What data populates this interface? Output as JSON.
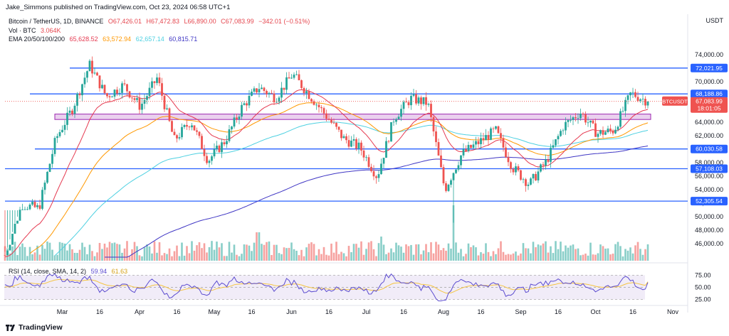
{
  "header": {
    "published": "Jake_Simmons published on TradingView.com, Oct 23, 2024 06:58 UTC+1"
  },
  "legend": {
    "symbol": "Bitcoin / TetherUS, 1D, BINANCE",
    "open": "O67,426.01",
    "high": "H67,472.83",
    "low": "L66,890.00",
    "close": "C67,083.99",
    "change": "−342.01 (−0.51%)",
    "vol_label": "Vol · BTC",
    "vol_value": "3.064K",
    "ema_label": "EMA 20/50/100/200",
    "ema20": "65,628.52",
    "ema50": "63,572.94",
    "ema100": "62,657.14",
    "ema200": "60,815.71"
  },
  "rsi_legend": {
    "label": "RSI (14, close, SMA, 14, 2)",
    "rsi": "59.94",
    "sma": "61.63"
  },
  "axis": {
    "unit": "USDT"
  },
  "brand": {
    "name": "TradingView"
  },
  "colors": {
    "up": "#26a69a",
    "down": "#ef5350",
    "level": "#2962ff",
    "ema20": "#e53950",
    "ema50": "#ff9800",
    "ema100": "#4dd0e1",
    "ema200": "#3f36c4",
    "zone_fill": "#e1bee7",
    "zone_border": "#9c27b0",
    "rsi_line": "#5b4bcf",
    "rsi_sma": "#f5c542",
    "rsi_band": "#ede7f6"
  },
  "chart_data": {
    "type": "candlestick",
    "title": "Bitcoin / TetherUS, 1D, BINANCE",
    "ylabel": "USDT",
    "ylim": [
      44000,
      76000
    ],
    "y_ticks": [
      46000,
      48000,
      50000,
      52000,
      54000,
      56000,
      58000,
      60000,
      62000,
      64000,
      66000,
      68000,
      70000,
      72000,
      74000
    ],
    "x_ticks": [
      "Mar",
      "16",
      "Apr",
      "16",
      "May",
      "16",
      "Jun",
      "16",
      "Jul",
      "16",
      "Aug",
      "16",
      "Sep",
      "16",
      "Oct",
      "16",
      "Nov"
    ],
    "x_tick_days": [
      0,
      15,
      31,
      46,
      61,
      76,
      92,
      107,
      122,
      137,
      153,
      168,
      184,
      199,
      214,
      229,
      245
    ],
    "date_range": [
      "2024-02-07",
      "2024-10-23"
    ],
    "horizontal_levels": [
      {
        "price": 72021.95,
        "label": "72,021.95"
      },
      {
        "price": 68188.86,
        "label": "68,188.86"
      },
      {
        "price": 60030.58,
        "label": "60,030.58"
      },
      {
        "price": 57108.03,
        "label": "57,108.03"
      },
      {
        "price": 52305.54,
        "label": "52,305.54"
      }
    ],
    "current_price": {
      "price": 67083.99,
      "label": "67,083.99",
      "symbol": "BTCUSDT",
      "countdown": "18:01:05"
    },
    "zone": {
      "low": 64400,
      "high": 65200
    },
    "closes_weekly": [
      {
        "date": "Feb 07",
        "close": 44300
      },
      {
        "date": "Feb 14",
        "close": 51800
      },
      {
        "date": "Feb 21",
        "close": 51200
      },
      {
        "date": "Feb 28",
        "close": 61500
      },
      {
        "date": "Mar 06",
        "close": 66100
      },
      {
        "date": "Mar 13",
        "close": 72500
      },
      {
        "date": "Mar 20",
        "close": 67800
      },
      {
        "date": "Mar 27",
        "close": 69500
      },
      {
        "date": "Apr 03",
        "close": 66300
      },
      {
        "date": "Apr 10",
        "close": 70600
      },
      {
        "date": "Apr 17",
        "close": 61300
      },
      {
        "date": "Apr 24",
        "close": 64200
      },
      {
        "date": "May 01",
        "close": 58300
      },
      {
        "date": "May 08",
        "close": 61200
      },
      {
        "date": "May 15",
        "close": 66200
      },
      {
        "date": "May 22",
        "close": 69200
      },
      {
        "date": "May 29",
        "close": 67600
      },
      {
        "date": "Jun 05",
        "close": 71100
      },
      {
        "date": "Jun 12",
        "close": 68000
      },
      {
        "date": "Jun 19",
        "close": 64900
      },
      {
        "date": "Jun 26",
        "close": 61600
      },
      {
        "date": "Jul 03",
        "close": 60200
      },
      {
        "date": "Jul 08",
        "close": 55900
      },
      {
        "date": "Jul 15",
        "close": 64700
      },
      {
        "date": "Jul 22",
        "close": 67500
      },
      {
        "date": "Jul 29",
        "close": 66800
      },
      {
        "date": "Aug 05",
        "close": 54000
      },
      {
        "date": "Aug 12",
        "close": 59300
      },
      {
        "date": "Aug 19",
        "close": 61000
      },
      {
        "date": "Aug 26",
        "close": 62800
      },
      {
        "date": "Sep 02",
        "close": 57300
      },
      {
        "date": "Sep 09",
        "close": 54800
      },
      {
        "date": "Sep 16",
        "close": 58200
      },
      {
        "date": "Sep 23",
        "close": 63400
      },
      {
        "date": "Sep 30",
        "close": 65500
      },
      {
        "date": "Oct 07",
        "close": 62300
      },
      {
        "date": "Oct 14",
        "close": 62800
      },
      {
        "date": "Oct 21",
        "close": 68300
      },
      {
        "date": "Oct 23",
        "close": 67083.99
      }
    ],
    "rsi": {
      "levels": [
        75,
        50,
        25
      ],
      "value": 59.94,
      "sma": 61.63
    }
  }
}
